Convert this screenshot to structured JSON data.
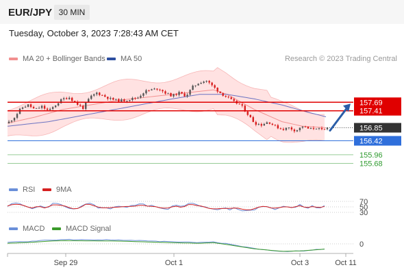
{
  "header": {
    "pair": "EUR/JPY",
    "timeframe": "30 MIN"
  },
  "datetime": "Tuesday, October 3, 2023 7:28:43 AM CET",
  "legend": {
    "ma20": "MA 20 + Bollinger Bands",
    "ma50": "MA 50",
    "rsi": "RSI",
    "rsi_ma": "9MA",
    "macd": "MACD",
    "macd_signal": "MACD Signal"
  },
  "credit": "Research © 2023 Trading Central",
  "colors": {
    "resistance": "#e00000",
    "support": "#2f6fdb",
    "target": "#2e9a2e",
    "bull": "#555555",
    "bear": "#d81e1e",
    "bands": "#ffd6d6",
    "ma20": "#f29090",
    "ma50": "#6a72c2",
    "rsi": "#6a8fd9",
    "rsi_ma": "#d52020",
    "macd": "#6a8fd9",
    "macd_signal": "#3a9a2a",
    "arrow": "#2b5ea8"
  },
  "chart_data": {
    "type": "candlestick",
    "price_axis": [
      {
        "label": "157.69",
        "value": 157.69,
        "kind": "resistance"
      },
      {
        "label": "157.41",
        "value": 157.41,
        "kind": "resistance"
      },
      {
        "label": "156.85",
        "value": 156.85,
        "kind": "last"
      },
      {
        "label": "156.42",
        "value": 156.42,
        "kind": "support"
      },
      {
        "label": "155.96",
        "value": 155.96,
        "kind": "target"
      },
      {
        "label": "155.68",
        "value": 155.68,
        "kind": "target"
      }
    ],
    "x_ticks": [
      "Sep 29",
      "Oct 1",
      "Oct 3",
      "Oct 11"
    ],
    "price_path": [
      [
        0,
        157.0
      ],
      [
        5,
        157.2
      ],
      [
        10,
        157.5
      ],
      [
        15,
        157.6
      ],
      [
        20,
        157.45
      ],
      [
        25,
        157.55
      ],
      [
        30,
        157.4
      ],
      [
        35,
        157.6
      ],
      [
        40,
        157.8
      ],
      [
        45,
        157.85
      ],
      [
        50,
        157.65
      ],
      [
        55,
        157.5
      ],
      [
        60,
        157.85
      ],
      [
        65,
        158.0
      ],
      [
        70,
        157.9
      ],
      [
        75,
        157.8
      ],
      [
        80,
        157.75
      ],
      [
        85,
        157.75
      ],
      [
        90,
        157.8
      ],
      [
        95,
        157.85
      ],
      [
        100,
        158.05
      ],
      [
        105,
        158.1
      ],
      [
        110,
        158.15
      ],
      [
        115,
        158.0
      ],
      [
        120,
        157.9
      ],
      [
        125,
        158.0
      ],
      [
        130,
        157.9
      ],
      [
        135,
        158.2
      ],
      [
        140,
        158.35
      ],
      [
        145,
        158.4
      ],
      [
        150,
        158.2
      ],
      [
        155,
        158.0
      ],
      [
        160,
        157.85
      ],
      [
        165,
        157.7
      ],
      [
        170,
        157.6
      ],
      [
        175,
        157.3
      ],
      [
        180,
        157.0
      ],
      [
        185,
        156.95
      ],
      [
        190,
        157.05
      ],
      [
        195,
        156.9
      ],
      [
        200,
        156.8
      ],
      [
        205,
        156.85
      ],
      [
        210,
        156.75
      ],
      [
        215,
        156.9
      ],
      [
        220,
        156.8
      ],
      [
        225,
        156.85
      ],
      [
        230,
        156.75
      ],
      [
        233,
        156.85
      ]
    ],
    "ma20_path": [
      [
        0,
        157.0
      ],
      [
        20,
        157.2
      ],
      [
        40,
        157.45
      ],
      [
        60,
        157.6
      ],
      [
        80,
        157.75
      ],
      [
        100,
        157.85
      ],
      [
        120,
        157.95
      ],
      [
        140,
        158.05
      ],
      [
        150,
        158.1
      ],
      [
        160,
        157.95
      ],
      [
        170,
        157.7
      ],
      [
        180,
        157.45
      ],
      [
        190,
        157.25
      ],
      [
        200,
        157.05
      ],
      [
        215,
        156.9
      ],
      [
        233,
        156.85
      ]
    ],
    "ma50_path": [
      [
        0,
        156.9
      ],
      [
        30,
        157.05
      ],
      [
        60,
        157.3
      ],
      [
        90,
        157.55
      ],
      [
        120,
        157.8
      ],
      [
        140,
        157.95
      ],
      [
        160,
        157.95
      ],
      [
        180,
        157.8
      ],
      [
        200,
        157.6
      ],
      [
        220,
        157.35
      ],
      [
        233,
        157.2
      ]
    ],
    "rsi": {
      "levels": [
        "70",
        "50",
        "30"
      ]
    },
    "macd": {
      "levels": [
        "0"
      ]
    },
    "forecast": {
      "from": 156.85,
      "to": 157.69
    }
  }
}
